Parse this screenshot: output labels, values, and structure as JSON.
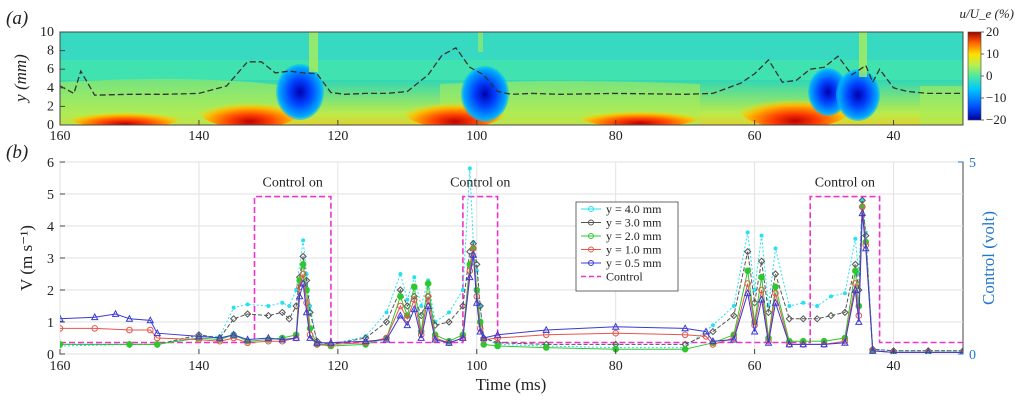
{
  "chart_data": [
    {
      "panel": "(a)",
      "type": "heatmap",
      "xlabel": "",
      "ylabel": "y (mm)",
      "xlim": [
        160,
        30
      ],
      "ylim": [
        0,
        10
      ],
      "x_ticks": [
        "160",
        "140",
        "120",
        "100",
        "80",
        "60",
        "40"
      ],
      "y_ticks": [
        "0",
        "2",
        "4",
        "6",
        "8",
        "10"
      ],
      "colorbar": {
        "title": "u/U_e (%)",
        "range": [
          -20,
          20
        ],
        "ticks": [
          "20",
          "10",
          "0",
          "−10",
          "−20"
        ]
      },
      "boundary_layer_edge_dashed": {
        "x": [
          160,
          158,
          157,
          155,
          150,
          145,
          140,
          136,
          133,
          131,
          129,
          127,
          125,
          123,
          121,
          119,
          116,
          113,
          110,
          107,
          105,
          103,
          101,
          99,
          97,
          95,
          92,
          88,
          80,
          70,
          66,
          62,
          60,
          58,
          56,
          54,
          52,
          50,
          48,
          46,
          44,
          43,
          42,
          40,
          38,
          35,
          30
        ],
        "y": [
          4.2,
          3.4,
          5.8,
          3.2,
          3.3,
          3.3,
          3.4,
          4.2,
          6.8,
          6.8,
          5.6,
          5.8,
          5.6,
          5.5,
          3.5,
          3.3,
          3.4,
          3.4,
          3.6,
          5.4,
          7.5,
          8.3,
          6.2,
          5.4,
          3.6,
          3.3,
          3.4,
          3.3,
          3.4,
          3.3,
          3.4,
          4.5,
          5.5,
          7.0,
          4.6,
          4.8,
          6.0,
          6.2,
          7.4,
          5.4,
          6.4,
          4.6,
          6.0,
          4.0,
          3.6,
          3.4,
          3.4
        ]
      }
    },
    {
      "panel": "(b)",
      "type": "line",
      "xlabel": "Time (ms)",
      "ylabel": "V (m s⁻¹)",
      "y2label": "Control (volt)",
      "xlim": [
        160,
        30
      ],
      "ylim": [
        0,
        6
      ],
      "y2lim": [
        0,
        5
      ],
      "x_ticks": [
        "160",
        "140",
        "120",
        "100",
        "80",
        "60",
        "40"
      ],
      "y_ticks": [
        "0",
        "1",
        "2",
        "3",
        "4",
        "5",
        "6"
      ],
      "y2_ticks": [
        "0",
        "5"
      ],
      "annotations": [
        "Control on",
        "Control on",
        "Control on"
      ],
      "series": [
        {
          "name": "y = 4.0 mm",
          "color": "#28e0f0",
          "x": [
            160,
            150,
            146,
            140,
            137,
            135,
            133,
            130,
            128,
            127,
            126,
            125,
            124.5,
            124,
            123,
            121,
            116,
            113,
            111,
            110,
            109,
            108,
            107,
            106,
            104,
            102,
            101,
            100.5,
            100,
            99.5,
            99,
            97,
            90,
            80,
            70,
            66,
            63,
            61,
            60,
            59,
            58,
            57,
            55,
            53,
            51,
            49,
            47,
            45.5,
            45,
            44.5,
            44,
            43,
            40,
            35,
            30
          ],
          "y": [
            0.25,
            0.3,
            0.3,
            0.55,
            0.55,
            1.45,
            1.55,
            1.5,
            1.6,
            1.5,
            2.0,
            3.55,
            2.5,
            1.5,
            0.35,
            0.3,
            0.55,
            1.3,
            2.5,
            1.7,
            2.4,
            1.5,
            2.3,
            1.0,
            1.3,
            2.0,
            5.8,
            3.5,
            2.6,
            1.5,
            0.5,
            0.3,
            0.25,
            0.2,
            0.2,
            0.9,
            1.5,
            3.8,
            2.0,
            3.7,
            1.5,
            3.3,
            1.5,
            1.6,
            1.5,
            1.8,
            1.9,
            3.6,
            2.5,
            4.8,
            3.8,
            0.15,
            0.1,
            0.1,
            0.1
          ]
        },
        {
          "name": "y = 3.0 mm",
          "color": "#555555",
          "x": [
            160,
            150,
            146,
            140,
            137,
            135,
            133,
            130,
            128,
            127,
            126,
            125.5,
            125,
            124.5,
            124,
            123,
            121,
            116,
            113,
            111,
            110,
            109,
            108,
            107,
            106,
            104,
            102,
            101,
            100.5,
            100,
            99.5,
            99,
            97,
            90,
            80,
            70,
            66,
            63,
            61,
            60,
            59,
            58,
            57,
            55,
            53,
            51,
            49,
            47,
            45.5,
            45,
            44.5,
            44,
            43,
            40,
            35,
            30
          ],
          "y": [
            0.3,
            0.3,
            0.3,
            0.6,
            0.5,
            1.1,
            1.25,
            1.2,
            1.3,
            1.1,
            1.5,
            2.4,
            3.05,
            2.3,
            1.3,
            0.4,
            0.3,
            0.5,
            1.0,
            2.0,
            1.5,
            1.8,
            1.2,
            1.8,
            0.9,
            1.0,
            1.5,
            3.2,
            3.45,
            2.8,
            1.5,
            0.5,
            0.35,
            0.3,
            0.3,
            0.3,
            0.7,
            1.2,
            3.2,
            1.6,
            2.9,
            1.3,
            2.5,
            1.1,
            1.1,
            1.1,
            1.2,
            1.3,
            2.8,
            2.0,
            4.8,
            3.7,
            0.15,
            0.1,
            0.1,
            0.1
          ]
        },
        {
          "name": "y = 2.0 mm",
          "color": "#2ec82e",
          "x": [
            160,
            150,
            146,
            140,
            137,
            135,
            133,
            130,
            128,
            126,
            125.5,
            125,
            124.5,
            124,
            123,
            121,
            116,
            113,
            111,
            110,
            109,
            108,
            107,
            106,
            104,
            102,
            101,
            100.5,
            100,
            99.5,
            99,
            97,
            90,
            80,
            70,
            66,
            63,
            61,
            60,
            59,
            58,
            57,
            55,
            53,
            50,
            47,
            45.5,
            45,
            44.5,
            44,
            43,
            40,
            35,
            30
          ],
          "y": [
            0.3,
            0.3,
            0.3,
            0.5,
            0.45,
            0.6,
            0.4,
            0.45,
            0.5,
            0.6,
            2.3,
            2.8,
            2.0,
            0.8,
            0.3,
            0.25,
            0.3,
            0.5,
            1.8,
            1.2,
            2.1,
            0.7,
            2.2,
            0.6,
            0.4,
            0.6,
            2.8,
            3.3,
            2.0,
            1.0,
            0.3,
            0.25,
            0.2,
            0.15,
            0.15,
            0.35,
            0.6,
            2.6,
            1.0,
            2.4,
            0.5,
            2.1,
            0.4,
            0.4,
            0.4,
            0.5,
            2.6,
            1.5,
            4.6,
            3.5,
            0.1,
            0.05,
            0.05,
            0.05
          ]
        },
        {
          "name": "y = 1.0 mm",
          "color": "#e8554a",
          "x": [
            160,
            155,
            150,
            147,
            146,
            140,
            137,
            135,
            133,
            130,
            128,
            126,
            125.5,
            125,
            124.5,
            124,
            123,
            121,
            116,
            113,
            111,
            110,
            109,
            108,
            107,
            106,
            104,
            102,
            101,
            100.5,
            100,
            99.5,
            99,
            97,
            90,
            80,
            70,
            67,
            66,
            63,
            61,
            60,
            59,
            58,
            57,
            55,
            53,
            50,
            47,
            45.5,
            45,
            44.5,
            44,
            43,
            40,
            35,
            30
          ],
          "y": [
            0.8,
            0.8,
            0.75,
            0.75,
            0.5,
            0.45,
            0.4,
            0.5,
            0.35,
            0.4,
            0.4,
            0.5,
            2.1,
            2.5,
            1.6,
            0.6,
            0.3,
            0.3,
            0.35,
            0.5,
            1.5,
            1.1,
            1.7,
            0.6,
            1.8,
            0.5,
            0.35,
            0.5,
            2.6,
            3.3,
            1.8,
            0.8,
            0.45,
            0.5,
            0.6,
            0.65,
            0.6,
            0.55,
            0.3,
            0.5,
            2.2,
            0.9,
            2.0,
            0.4,
            1.9,
            0.3,
            0.3,
            0.3,
            0.4,
            2.2,
            1.2,
            4.6,
            3.4,
            0.1,
            0.05,
            0.05,
            0.05
          ]
        },
        {
          "name": "y = 0.5 mm",
          "color": "#3a3ad8",
          "x": [
            160,
            155,
            152,
            150,
            147,
            146,
            140,
            137,
            135,
            133,
            130,
            128,
            126,
            125.5,
            125,
            124.5,
            124,
            123,
            121,
            116,
            113,
            111,
            110,
            109,
            108,
            107,
            106,
            104,
            102,
            101,
            100.5,
            100,
            99.5,
            99,
            97,
            90,
            80,
            70,
            67,
            66,
            63,
            61,
            60,
            59,
            58,
            57,
            55,
            53,
            50,
            47,
            45.5,
            45,
            44.5,
            44,
            43,
            40,
            35,
            30
          ],
          "y": [
            1.1,
            1.15,
            1.25,
            1.1,
            1.05,
            0.65,
            0.55,
            0.5,
            0.6,
            0.45,
            0.5,
            0.45,
            0.5,
            1.8,
            2.2,
            1.3,
            0.5,
            0.35,
            0.35,
            0.4,
            0.45,
            1.2,
            0.9,
            1.4,
            0.5,
            1.5,
            0.45,
            0.35,
            0.5,
            2.4,
            3.1,
            1.6,
            0.7,
            0.5,
            0.6,
            0.75,
            0.85,
            0.8,
            0.7,
            0.4,
            0.45,
            1.9,
            0.7,
            1.7,
            0.35,
            1.6,
            0.3,
            0.3,
            0.3,
            0.35,
            2.0,
            1.0,
            4.4,
            3.3,
            0.1,
            0.05,
            0.05,
            0.05
          ]
        }
      ],
      "control_signal": {
        "name": "Control",
        "color": "#ee33cc",
        "x": [
          160,
          132,
          132,
          121,
          121,
          102,
          102,
          97,
          97,
          52,
          52,
          42,
          42,
          30
        ],
        "y": [
          0.3,
          0.3,
          4.1,
          4.1,
          0.3,
          0.3,
          4.1,
          4.1,
          0.3,
          0.3,
          4.1,
          4.1,
          0.3,
          0.3
        ]
      },
      "legend": {
        "entries": [
          "y = 4.0 mm",
          "y = 3.0 mm",
          "y = 2.0 mm",
          "y = 1.0 mm",
          "y = 0.5 mm",
          "Control"
        ],
        "placement": "center-right"
      }
    }
  ]
}
